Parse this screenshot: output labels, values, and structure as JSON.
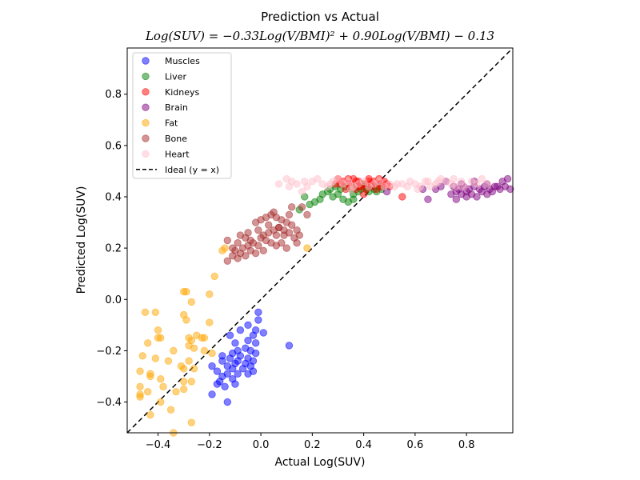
{
  "chart_data": {
    "type": "scatter",
    "title": "Prediction vs Actual",
    "subtitle": "Log(SUV) = −0.33Log(V/BMI)² + 0.90Log(V/BMI) − 0.13",
    "xlabel": "Actual Log(SUV)",
    "ylabel": "Predicted Log(SUV)",
    "xlim": [
      -0.52,
      0.98
    ],
    "ylim": [
      -0.52,
      0.98
    ],
    "xticks": [
      -0.4,
      -0.2,
      0.0,
      0.2,
      0.4,
      0.6,
      0.8
    ],
    "yticks": [
      -0.4,
      -0.2,
      0.0,
      0.2,
      0.4,
      0.6,
      0.8
    ],
    "xtick_labels": [
      "−0.4",
      "−0.2",
      "0.0",
      "0.2",
      "0.4",
      "0.6",
      "0.8"
    ],
    "ytick_labels": [
      "−0.4",
      "−0.2",
      "0.0",
      "0.2",
      "0.4",
      "0.6",
      "0.8"
    ],
    "grid": false,
    "legend_position": "top-left",
    "ideal_line": {
      "name": "Ideal (y = x)",
      "color": "#000000",
      "style": "dashed"
    },
    "series": [
      {
        "name": "Muscles",
        "color": "#0000ff",
        "points": [
          [
            -0.01,
            -0.05
          ],
          [
            -0.01,
            -0.08
          ],
          [
            -0.05,
            -0.1
          ],
          [
            -0.02,
            -0.12
          ],
          [
            -0.08,
            -0.12
          ],
          [
            0.01,
            -0.13
          ],
          [
            -0.12,
            -0.14
          ],
          [
            -0.03,
            -0.14
          ],
          [
            -0.05,
            -0.16
          ],
          [
            -0.1,
            -0.17
          ],
          [
            -0.02,
            -0.17
          ],
          [
            0.11,
            -0.18
          ],
          [
            -0.06,
            -0.19
          ],
          [
            -0.09,
            -0.2
          ],
          [
            -0.04,
            -0.2
          ],
          [
            -0.11,
            -0.21
          ],
          [
            -0.02,
            -0.21
          ],
          [
            -0.08,
            -0.22
          ],
          [
            -0.15,
            -0.22
          ],
          [
            -0.12,
            -0.23
          ],
          [
            -0.05,
            -0.23
          ],
          [
            -0.09,
            -0.24
          ],
          [
            -0.03,
            -0.24
          ],
          [
            -0.15,
            -0.24
          ],
          [
            -0.1,
            -0.25
          ],
          [
            -0.06,
            -0.25
          ],
          [
            -0.13,
            -0.26
          ],
          [
            -0.04,
            -0.26
          ],
          [
            -0.19,
            -0.26
          ],
          [
            -0.07,
            -0.27
          ],
          [
            -0.11,
            -0.27
          ],
          [
            -0.03,
            -0.28
          ],
          [
            -0.17,
            -0.28
          ],
          [
            -0.05,
            -0.29
          ],
          [
            -0.13,
            -0.29
          ],
          [
            -0.09,
            -0.29
          ],
          [
            -0.15,
            -0.3
          ],
          [
            -0.11,
            -0.31
          ],
          [
            -0.16,
            -0.32
          ],
          [
            -0.17,
            -0.33
          ],
          [
            -0.1,
            -0.33
          ],
          [
            -0.14,
            -0.34
          ],
          [
            -0.19,
            -0.37
          ],
          [
            -0.13,
            -0.4
          ]
        ]
      },
      {
        "name": "Liver",
        "color": "#008000",
        "points": [
          [
            0.19,
            0.37
          ],
          [
            0.21,
            0.38
          ],
          [
            0.15,
            0.35
          ],
          [
            0.17,
            0.4
          ],
          [
            0.23,
            0.39
          ],
          [
            0.24,
            0.41
          ],
          [
            0.26,
            0.42
          ],
          [
            0.28,
            0.4
          ],
          [
            0.3,
            0.41
          ],
          [
            0.32,
            0.39
          ],
          [
            0.34,
            0.38
          ],
          [
            0.36,
            0.41
          ],
          [
            0.38,
            0.42
          ],
          [
            0.31,
            0.43
          ],
          [
            0.33,
            0.44
          ],
          [
            0.35,
            0.43
          ],
          [
            0.37,
            0.44
          ],
          [
            0.39,
            0.45
          ],
          [
            0.41,
            0.43
          ],
          [
            0.43,
            0.44
          ],
          [
            0.45,
            0.42
          ],
          [
            0.47,
            0.43
          ],
          [
            0.4,
            0.44
          ],
          [
            0.42,
            0.42
          ],
          [
            0.29,
            0.44
          ],
          [
            0.27,
            0.43
          ],
          [
            0.36,
            0.39
          ],
          [
            0.44,
            0.43
          ],
          [
            0.46,
            0.44
          ],
          [
            0.39,
            0.43
          ]
        ]
      },
      {
        "name": "Kidneys",
        "color": "#ff0000",
        "points": [
          [
            0.3,
            0.47
          ],
          [
            0.32,
            0.46
          ],
          [
            0.34,
            0.45
          ],
          [
            0.36,
            0.47
          ],
          [
            0.38,
            0.46
          ],
          [
            0.4,
            0.45
          ],
          [
            0.42,
            0.47
          ],
          [
            0.44,
            0.46
          ],
          [
            0.46,
            0.45
          ],
          [
            0.48,
            0.46
          ],
          [
            0.5,
            0.44
          ],
          [
            0.33,
            0.43
          ],
          [
            0.35,
            0.44
          ],
          [
            0.37,
            0.43
          ],
          [
            0.39,
            0.44
          ],
          [
            0.41,
            0.43
          ],
          [
            0.43,
            0.44
          ],
          [
            0.45,
            0.43
          ],
          [
            0.47,
            0.44
          ],
          [
            0.31,
            0.45
          ],
          [
            0.29,
            0.45
          ],
          [
            0.37,
            0.46
          ],
          [
            0.43,
            0.45
          ],
          [
            0.49,
            0.45
          ],
          [
            0.55,
            0.4
          ],
          [
            0.4,
            0.41
          ],
          [
            0.34,
            0.47
          ],
          [
            0.38,
            0.44
          ],
          [
            0.42,
            0.46
          ],
          [
            0.46,
            0.47
          ]
        ]
      },
      {
        "name": "Brain",
        "color": "#800080",
        "points": [
          [
            0.75,
            0.44
          ],
          [
            0.77,
            0.43
          ],
          [
            0.79,
            0.44
          ],
          [
            0.81,
            0.43
          ],
          [
            0.83,
            0.44
          ],
          [
            0.85,
            0.43
          ],
          [
            0.87,
            0.44
          ],
          [
            0.89,
            0.43
          ],
          [
            0.91,
            0.44
          ],
          [
            0.93,
            0.43
          ],
          [
            0.95,
            0.44
          ],
          [
            0.97,
            0.43
          ],
          [
            0.76,
            0.42
          ],
          [
            0.78,
            0.41
          ],
          [
            0.8,
            0.42
          ],
          [
            0.82,
            0.41
          ],
          [
            0.84,
            0.4
          ],
          [
            0.86,
            0.42
          ],
          [
            0.88,
            0.41
          ],
          [
            0.9,
            0.42
          ],
          [
            0.92,
            0.44
          ],
          [
            0.94,
            0.46
          ],
          [
            0.96,
            0.47
          ],
          [
            0.74,
            0.41
          ],
          [
            0.72,
            0.46
          ],
          [
            0.68,
            0.43
          ],
          [
            0.65,
            0.39
          ],
          [
            0.63,
            0.43
          ],
          [
            0.7,
            0.44
          ],
          [
            0.78,
            0.45
          ],
          [
            0.83,
            0.46
          ],
          [
            0.88,
            0.45
          ],
          [
            0.49,
            0.42
          ],
          [
            0.76,
            0.39
          ],
          [
            0.8,
            0.4
          ]
        ]
      },
      {
        "name": "Fat",
        "color": "#ffa500",
        "points": [
          [
            -0.18,
            0.09
          ],
          [
            -0.2,
            0.02
          ],
          [
            -0.14,
            0.2
          ],
          [
            -0.15,
            0.19
          ],
          [
            0.18,
            0.2
          ],
          [
            -0.29,
            0.03
          ],
          [
            -0.3,
            0.03
          ],
          [
            -0.27,
            -0.01
          ],
          [
            -0.3,
            -0.06
          ],
          [
            -0.29,
            -0.08
          ],
          [
            -0.2,
            -0.09
          ],
          [
            -0.45,
            -0.05
          ],
          [
            -0.41,
            -0.05
          ],
          [
            -0.4,
            -0.12
          ],
          [
            -0.4,
            -0.15
          ],
          [
            -0.39,
            -0.15
          ],
          [
            -0.28,
            -0.15
          ],
          [
            -0.25,
            -0.14
          ],
          [
            -0.23,
            -0.15
          ],
          [
            -0.22,
            -0.15
          ],
          [
            -0.27,
            -0.16
          ],
          [
            -0.44,
            -0.17
          ],
          [
            -0.28,
            -0.18
          ],
          [
            -0.26,
            -0.19
          ],
          [
            -0.34,
            -0.2
          ],
          [
            -0.22,
            -0.2
          ],
          [
            -0.19,
            -0.21
          ],
          [
            -0.46,
            -0.22
          ],
          [
            -0.41,
            -0.23
          ],
          [
            -0.28,
            -0.24
          ],
          [
            -0.31,
            -0.26
          ],
          [
            -0.26,
            -0.27
          ],
          [
            -0.3,
            -0.27
          ],
          [
            -0.47,
            -0.28
          ],
          [
            -0.43,
            -0.29
          ],
          [
            -0.43,
            -0.3
          ],
          [
            -0.39,
            -0.31
          ],
          [
            -0.3,
            -0.32
          ],
          [
            -0.27,
            -0.32
          ],
          [
            -0.3,
            -0.35
          ],
          [
            -0.38,
            -0.34
          ],
          [
            -0.47,
            -0.34
          ],
          [
            -0.44,
            -0.36
          ],
          [
            -0.33,
            -0.36
          ],
          [
            -0.47,
            -0.37
          ],
          [
            -0.47,
            -0.38
          ],
          [
            -0.39,
            -0.4
          ],
          [
            -0.35,
            -0.43
          ],
          [
            -0.43,
            -0.45
          ],
          [
            -0.27,
            -0.48
          ],
          [
            -0.34,
            -0.52
          ],
          [
            -0.36,
            -0.24
          ]
        ]
      },
      {
        "name": "Bone",
        "color": "#a52a2a",
        "points": [
          [
            -0.13,
            0.15
          ],
          [
            -0.11,
            0.17
          ],
          [
            -0.09,
            0.16
          ],
          [
            -0.08,
            0.18
          ],
          [
            -0.06,
            0.17
          ],
          [
            -0.04,
            0.19
          ],
          [
            -0.02,
            0.18
          ],
          [
            -0.07,
            0.2
          ],
          [
            -0.05,
            0.21
          ],
          [
            -0.03,
            0.22
          ],
          [
            -0.01,
            0.21
          ],
          [
            -0.09,
            0.22
          ],
          [
            -0.11,
            0.2
          ],
          [
            -0.13,
            0.23
          ],
          [
            -0.06,
            0.24
          ],
          [
            -0.04,
            0.23
          ],
          [
            0.0,
            0.24
          ],
          [
            0.02,
            0.23
          ],
          [
            0.04,
            0.22
          ],
          [
            0.06,
            0.21
          ],
          [
            0.08,
            0.22
          ],
          [
            0.1,
            0.2
          ],
          [
            0.01,
            0.25
          ],
          [
            0.03,
            0.26
          ],
          [
            0.05,
            0.27
          ],
          [
            0.07,
            0.28
          ],
          [
            0.09,
            0.25
          ],
          [
            0.11,
            0.26
          ],
          [
            0.13,
            0.24
          ],
          [
            0.15,
            0.25
          ],
          [
            -0.02,
            0.3
          ],
          [
            0.0,
            0.31
          ],
          [
            0.02,
            0.32
          ],
          [
            0.04,
            0.33
          ],
          [
            0.06,
            0.32
          ],
          [
            0.08,
            0.31
          ],
          [
            0.1,
            0.3
          ],
          [
            0.12,
            0.29
          ],
          [
            0.14,
            0.27
          ],
          [
            0.16,
            0.36
          ],
          [
            0.18,
            0.33
          ],
          [
            0.05,
            0.34
          ],
          [
            0.07,
            0.28
          ],
          [
            0.03,
            0.29
          ],
          [
            -0.01,
            0.27
          ],
          [
            0.11,
            0.33
          ],
          [
            0.09,
            0.27
          ],
          [
            0.12,
            0.36
          ],
          [
            -0.08,
            0.25
          ],
          [
            -0.05,
            0.26
          ],
          [
            0.14,
            0.22
          ],
          [
            0.01,
            0.19
          ],
          [
            -0.1,
            0.19
          ],
          [
            0.06,
            0.25
          ]
        ]
      },
      {
        "name": "Heart",
        "color": "#ffc0cb",
        "points": [
          [
            0.07,
            0.45
          ],
          [
            0.1,
            0.47
          ],
          [
            0.12,
            0.46
          ],
          [
            0.14,
            0.45
          ],
          [
            0.16,
            0.42
          ],
          [
            0.18,
            0.44
          ],
          [
            0.2,
            0.46
          ],
          [
            0.22,
            0.47
          ],
          [
            0.24,
            0.45
          ],
          [
            0.26,
            0.44
          ],
          [
            0.28,
            0.46
          ],
          [
            0.3,
            0.47
          ],
          [
            0.32,
            0.45
          ],
          [
            0.34,
            0.46
          ],
          [
            0.36,
            0.44
          ],
          [
            0.38,
            0.45
          ],
          [
            0.4,
            0.46
          ],
          [
            0.42,
            0.44
          ],
          [
            0.44,
            0.45
          ],
          [
            0.46,
            0.46
          ],
          [
            0.48,
            0.44
          ],
          [
            0.5,
            0.45
          ],
          [
            0.52,
            0.44
          ],
          [
            0.55,
            0.45
          ],
          [
            0.57,
            0.44
          ],
          [
            0.6,
            0.45
          ],
          [
            0.62,
            0.44
          ],
          [
            0.64,
            0.46
          ],
          [
            0.66,
            0.44
          ],
          [
            0.68,
            0.45
          ],
          [
            0.7,
            0.47
          ],
          [
            0.72,
            0.46
          ],
          [
            0.74,
            0.45
          ],
          [
            0.76,
            0.44
          ],
          [
            0.78,
            0.46
          ],
          [
            0.82,
            0.46
          ],
          [
            0.84,
            0.45
          ],
          [
            0.86,
            0.47
          ],
          [
            0.88,
            0.45
          ],
          [
            0.61,
            0.43
          ],
          [
            0.65,
            0.46
          ],
          [
            0.69,
            0.46
          ],
          [
            0.75,
            0.47
          ],
          [
            0.79,
            0.44
          ],
          [
            0.53,
            0.45
          ],
          [
            0.58,
            0.46
          ],
          [
            0.35,
            0.43
          ],
          [
            0.27,
            0.45
          ],
          [
            0.17,
            0.46
          ],
          [
            0.11,
            0.44
          ]
        ]
      }
    ]
  }
}
